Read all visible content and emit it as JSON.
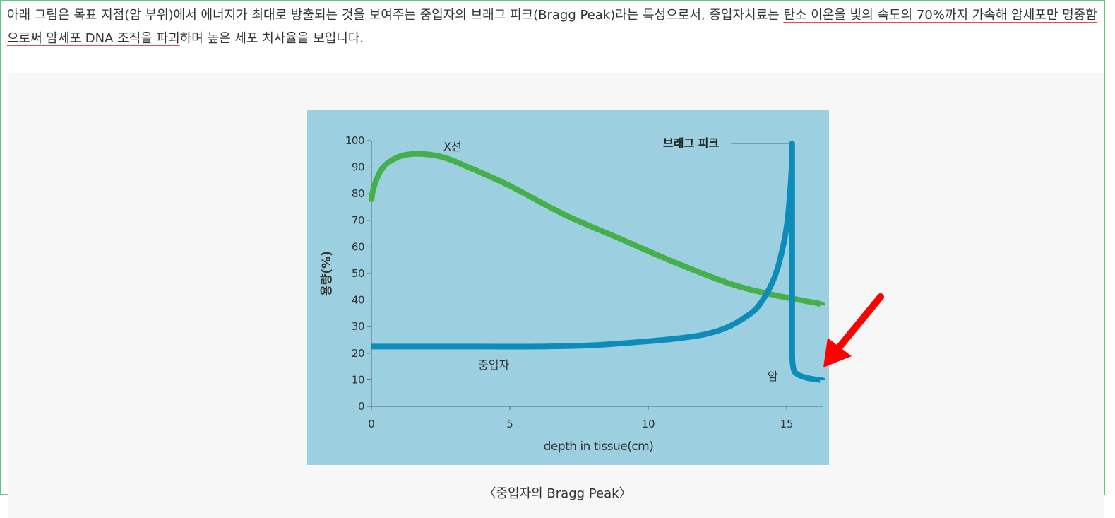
{
  "article": {
    "para_before": "아래 그림은 목표 지점(암 부위)에서 에너지가 최대로 방출되는 것을 보여주는 중입자의 브래그 피크(Bragg Peak)라는 특성으로서, 중입자치료는 ",
    "para_highlight": "탄소 이온을 빛의 속도의 70%까지 가속해 암세포만 명중함으로써 암세포 DNA 조직을 파괴",
    "para_after": "하며 높은 세포 치사율을 보입니다.",
    "caption": "〈중입자의 Bragg Peak〉"
  },
  "colors": {
    "figure_bg": "#9ccfdf",
    "xray_line": "#45b04a",
    "heavy_ion_line": "#0d8cba",
    "arrow": "#ff0000",
    "frame_border": "#5fc587"
  },
  "chart_data": {
    "type": "line",
    "xlabel": "depth in tissue(cm)",
    "ylabel": "용량(%)",
    "xlim": [
      0,
      16.3
    ],
    "ylim": [
      0,
      100
    ],
    "x_ticks": [
      0,
      5,
      10,
      15
    ],
    "y_ticks": [
      0,
      10,
      20,
      30,
      40,
      50,
      60,
      70,
      80,
      90,
      100
    ],
    "grid": false,
    "series": [
      {
        "name": "X선",
        "x": [
          0,
          0.3,
          0.8,
          1.5,
          2.5,
          3.5,
          5,
          7,
          9,
          11,
          13,
          14.5,
          15.5,
          16.3
        ],
        "y": [
          77,
          88,
          93,
          95,
          94,
          90,
          83,
          72,
          63,
          54,
          46,
          42,
          40,
          38
        ]
      },
      {
        "name": "중입자",
        "x": [
          0,
          2,
          4,
          6,
          8,
          10,
          11,
          12,
          12.8,
          13.5,
          14,
          14.5,
          14.8,
          15.05,
          15.2,
          15.2,
          15.25,
          15.4,
          15.7,
          16,
          16.3
        ],
        "y": [
          22.5,
          22.5,
          22.5,
          22.5,
          23,
          24.5,
          25.5,
          27,
          29.5,
          33.5,
          38,
          47,
          57,
          72,
          99,
          20,
          14,
          12,
          10.8,
          10.2,
          9.8
        ]
      }
    ],
    "annotations": {
      "peak": "브래그 피크",
      "cancer": "암"
    }
  }
}
